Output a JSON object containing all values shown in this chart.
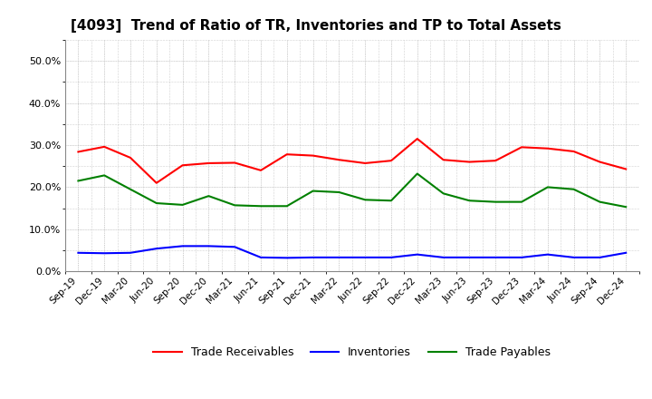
{
  "title": "[4093]  Trend of Ratio of TR, Inventories and TP to Total Assets",
  "x_labels": [
    "Sep-19",
    "Dec-19",
    "Mar-20",
    "Jun-20",
    "Sep-20",
    "Dec-20",
    "Mar-21",
    "Jun-21",
    "Sep-21",
    "Dec-21",
    "Mar-22",
    "Jun-22",
    "Sep-22",
    "Dec-22",
    "Mar-23",
    "Jun-23",
    "Sep-23",
    "Dec-23",
    "Mar-24",
    "Jun-24",
    "Sep-24",
    "Dec-24"
  ],
  "trade_receivables": [
    0.284,
    0.296,
    0.27,
    0.21,
    0.252,
    0.257,
    0.258,
    0.24,
    0.278,
    0.275,
    0.265,
    0.257,
    0.263,
    0.315,
    0.265,
    0.26,
    0.263,
    0.295,
    0.292,
    0.285,
    0.26,
    0.243
  ],
  "inventories": [
    0.044,
    0.043,
    0.044,
    0.054,
    0.06,
    0.06,
    0.058,
    0.033,
    0.032,
    0.033,
    0.033,
    0.033,
    0.033,
    0.04,
    0.033,
    0.033,
    0.033,
    0.033,
    0.04,
    0.033,
    0.033,
    0.044
  ],
  "trade_payables": [
    0.215,
    0.228,
    0.195,
    0.162,
    0.158,
    0.179,
    0.157,
    0.155,
    0.155,
    0.191,
    0.188,
    0.17,
    0.168,
    0.232,
    0.185,
    0.168,
    0.165,
    0.165,
    0.2,
    0.195,
    0.165,
    0.153
  ],
  "line_colors": {
    "trade_receivables": "#FF0000",
    "inventories": "#0000FF",
    "trade_payables": "#008000"
  },
  "ylim": [
    0.0,
    0.55
  ],
  "yticks": [
    0.0,
    0.1,
    0.2,
    0.3,
    0.4,
    0.5
  ],
  "background_color": "#FFFFFF",
  "grid_color": "#AAAAAA",
  "title_fontsize": 11,
  "legend_labels": [
    "Trade Receivables",
    "Inventories",
    "Trade Payables"
  ]
}
